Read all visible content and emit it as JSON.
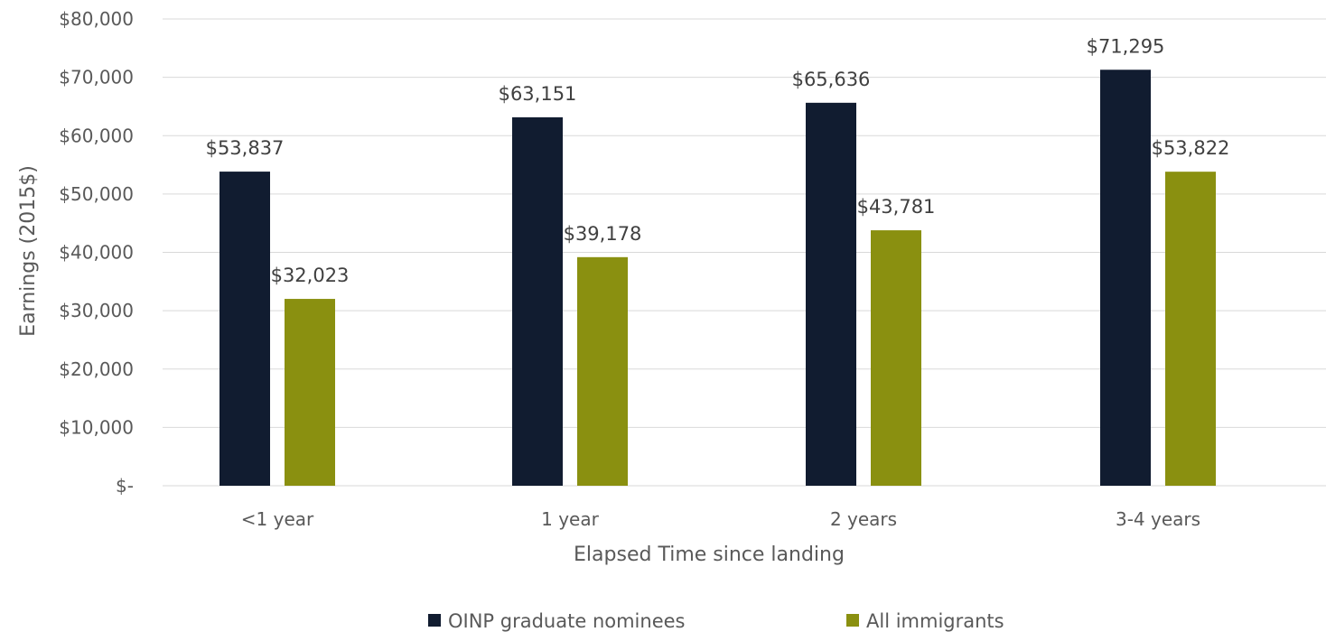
{
  "chart_data": {
    "type": "bar",
    "xlabel": "Elapsed Time since landing",
    "ylabel": "Earnings (2015$)",
    "categories": [
      "<1 year",
      "1 year",
      "2 years",
      "3-4 years"
    ],
    "series": [
      {
        "name": "OINP graduate nominees",
        "color": "#111c30",
        "values": [
          53837,
          63151,
          65636,
          71295
        ],
        "labels": [
          "$53,837",
          "$63,151",
          "$65,636",
          "$71,295"
        ]
      },
      {
        "name": "All immigrants",
        "color": "#8a9010",
        "values": [
          32023,
          39178,
          43781,
          53822
        ],
        "labels": [
          "$32,023",
          "$39,178",
          "$43,781",
          "$53,822"
        ]
      }
    ],
    "ylim": [
      0,
      80000
    ],
    "yticks": [
      0,
      10000,
      20000,
      30000,
      40000,
      50000,
      60000,
      70000,
      80000
    ],
    "ytick_labels": [
      "$-",
      "$10,000",
      "$20,000",
      "$30,000",
      "$40,000",
      "$50,000",
      "$60,000",
      "$70,000",
      "$80,000"
    ],
    "grid": true,
    "legend_position": "bottom"
  }
}
